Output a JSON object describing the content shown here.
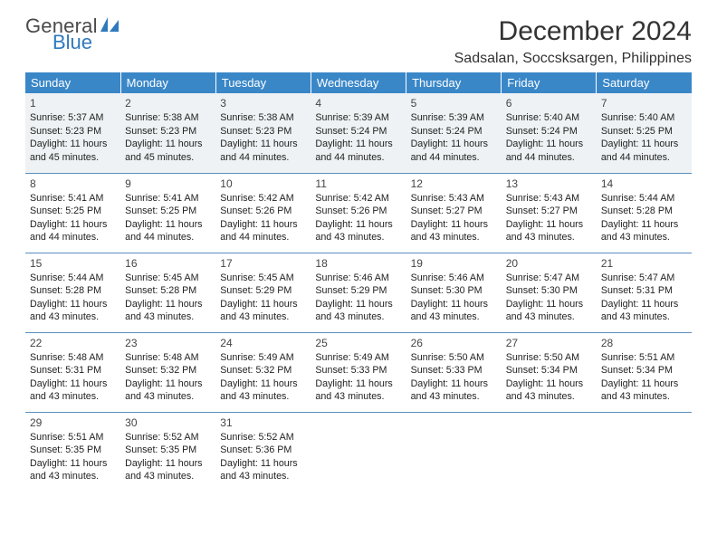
{
  "logo": {
    "part1": "General",
    "part2": "Blue"
  },
  "title": "December 2024",
  "location": "Sadsalan, Soccsksargen, Philippines",
  "colors": {
    "header_bg": "#3a87c8",
    "header_text": "#ffffff",
    "row_divider": "#5a8fbf",
    "first_row_bg": "#eef2f4",
    "logo_gray": "#4a4a4a",
    "logo_blue": "#2f79bd",
    "body_text": "#222222"
  },
  "typography": {
    "title_fontsize": 30,
    "location_fontsize": 16,
    "weekday_fontsize": 13,
    "cell_fontsize": 10.7,
    "daynum_fontsize": 12
  },
  "weekdays": [
    "Sunday",
    "Monday",
    "Tuesday",
    "Wednesday",
    "Thursday",
    "Friday",
    "Saturday"
  ],
  "days": [
    {
      "n": "1",
      "sr": "Sunrise: 5:37 AM",
      "ss": "Sunset: 5:23 PM",
      "dl": "Daylight: 11 hours and 45 minutes."
    },
    {
      "n": "2",
      "sr": "Sunrise: 5:38 AM",
      "ss": "Sunset: 5:23 PM",
      "dl": "Daylight: 11 hours and 45 minutes."
    },
    {
      "n": "3",
      "sr": "Sunrise: 5:38 AM",
      "ss": "Sunset: 5:23 PM",
      "dl": "Daylight: 11 hours and 44 minutes."
    },
    {
      "n": "4",
      "sr": "Sunrise: 5:39 AM",
      "ss": "Sunset: 5:24 PM",
      "dl": "Daylight: 11 hours and 44 minutes."
    },
    {
      "n": "5",
      "sr": "Sunrise: 5:39 AM",
      "ss": "Sunset: 5:24 PM",
      "dl": "Daylight: 11 hours and 44 minutes."
    },
    {
      "n": "6",
      "sr": "Sunrise: 5:40 AM",
      "ss": "Sunset: 5:24 PM",
      "dl": "Daylight: 11 hours and 44 minutes."
    },
    {
      "n": "7",
      "sr": "Sunrise: 5:40 AM",
      "ss": "Sunset: 5:25 PM",
      "dl": "Daylight: 11 hours and 44 minutes."
    },
    {
      "n": "8",
      "sr": "Sunrise: 5:41 AM",
      "ss": "Sunset: 5:25 PM",
      "dl": "Daylight: 11 hours and 44 minutes."
    },
    {
      "n": "9",
      "sr": "Sunrise: 5:41 AM",
      "ss": "Sunset: 5:25 PM",
      "dl": "Daylight: 11 hours and 44 minutes."
    },
    {
      "n": "10",
      "sr": "Sunrise: 5:42 AM",
      "ss": "Sunset: 5:26 PM",
      "dl": "Daylight: 11 hours and 44 minutes."
    },
    {
      "n": "11",
      "sr": "Sunrise: 5:42 AM",
      "ss": "Sunset: 5:26 PM",
      "dl": "Daylight: 11 hours and 43 minutes."
    },
    {
      "n": "12",
      "sr": "Sunrise: 5:43 AM",
      "ss": "Sunset: 5:27 PM",
      "dl": "Daylight: 11 hours and 43 minutes."
    },
    {
      "n": "13",
      "sr": "Sunrise: 5:43 AM",
      "ss": "Sunset: 5:27 PM",
      "dl": "Daylight: 11 hours and 43 minutes."
    },
    {
      "n": "14",
      "sr": "Sunrise: 5:44 AM",
      "ss": "Sunset: 5:28 PM",
      "dl": "Daylight: 11 hours and 43 minutes."
    },
    {
      "n": "15",
      "sr": "Sunrise: 5:44 AM",
      "ss": "Sunset: 5:28 PM",
      "dl": "Daylight: 11 hours and 43 minutes."
    },
    {
      "n": "16",
      "sr": "Sunrise: 5:45 AM",
      "ss": "Sunset: 5:28 PM",
      "dl": "Daylight: 11 hours and 43 minutes."
    },
    {
      "n": "17",
      "sr": "Sunrise: 5:45 AM",
      "ss": "Sunset: 5:29 PM",
      "dl": "Daylight: 11 hours and 43 minutes."
    },
    {
      "n": "18",
      "sr": "Sunrise: 5:46 AM",
      "ss": "Sunset: 5:29 PM",
      "dl": "Daylight: 11 hours and 43 minutes."
    },
    {
      "n": "19",
      "sr": "Sunrise: 5:46 AM",
      "ss": "Sunset: 5:30 PM",
      "dl": "Daylight: 11 hours and 43 minutes."
    },
    {
      "n": "20",
      "sr": "Sunrise: 5:47 AM",
      "ss": "Sunset: 5:30 PM",
      "dl": "Daylight: 11 hours and 43 minutes."
    },
    {
      "n": "21",
      "sr": "Sunrise: 5:47 AM",
      "ss": "Sunset: 5:31 PM",
      "dl": "Daylight: 11 hours and 43 minutes."
    },
    {
      "n": "22",
      "sr": "Sunrise: 5:48 AM",
      "ss": "Sunset: 5:31 PM",
      "dl": "Daylight: 11 hours and 43 minutes."
    },
    {
      "n": "23",
      "sr": "Sunrise: 5:48 AM",
      "ss": "Sunset: 5:32 PM",
      "dl": "Daylight: 11 hours and 43 minutes."
    },
    {
      "n": "24",
      "sr": "Sunrise: 5:49 AM",
      "ss": "Sunset: 5:32 PM",
      "dl": "Daylight: 11 hours and 43 minutes."
    },
    {
      "n": "25",
      "sr": "Sunrise: 5:49 AM",
      "ss": "Sunset: 5:33 PM",
      "dl": "Daylight: 11 hours and 43 minutes."
    },
    {
      "n": "26",
      "sr": "Sunrise: 5:50 AM",
      "ss": "Sunset: 5:33 PM",
      "dl": "Daylight: 11 hours and 43 minutes."
    },
    {
      "n": "27",
      "sr": "Sunrise: 5:50 AM",
      "ss": "Sunset: 5:34 PM",
      "dl": "Daylight: 11 hours and 43 minutes."
    },
    {
      "n": "28",
      "sr": "Sunrise: 5:51 AM",
      "ss": "Sunset: 5:34 PM",
      "dl": "Daylight: 11 hours and 43 minutes."
    },
    {
      "n": "29",
      "sr": "Sunrise: 5:51 AM",
      "ss": "Sunset: 5:35 PM",
      "dl": "Daylight: 11 hours and 43 minutes."
    },
    {
      "n": "30",
      "sr": "Sunrise: 5:52 AM",
      "ss": "Sunset: 5:35 PM",
      "dl": "Daylight: 11 hours and 43 minutes."
    },
    {
      "n": "31",
      "sr": "Sunrise: 5:52 AM",
      "ss": "Sunset: 5:36 PM",
      "dl": "Daylight: 11 hours and 43 minutes."
    }
  ]
}
